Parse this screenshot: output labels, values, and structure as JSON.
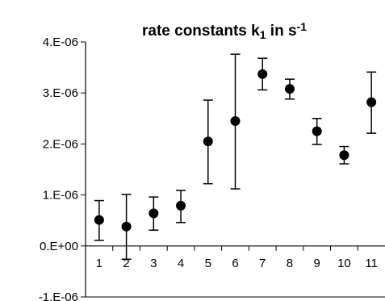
{
  "chart_data": {
    "type": "scatter",
    "title": {
      "prefix": "rate constants k",
      "subscript": "1",
      "middle": " in s",
      "superscript": "-1"
    },
    "xlabel": "",
    "ylabel": "",
    "x_tick_labels": [
      "1",
      "2",
      "3",
      "4",
      "5",
      "6",
      "7",
      "8",
      "9",
      "10",
      "11"
    ],
    "y_tick_labels": [
      "4.E-06",
      "3.E-06",
      "2.E-06",
      "1.E-06",
      "0.E+00",
      "-1.E-06"
    ],
    "y_ticks": [
      4e-06,
      3e-06,
      2e-06,
      1e-06,
      0,
      -1e-06
    ],
    "ylim": [
      -1e-06,
      4e-06
    ],
    "xlim": [
      0.5,
      11.5
    ],
    "grid": false,
    "legend": "none",
    "marker_color": "#000000",
    "series": [
      {
        "x": [
          1,
          2,
          3,
          4,
          5,
          6,
          7,
          8,
          9,
          10,
          11
        ],
        "y": [
          5.1e-07,
          3.8e-07,
          6.4e-07,
          7.9e-07,
          2.05e-06,
          2.45e-06,
          3.37e-06,
          3.08e-06,
          2.25e-06,
          1.78e-06,
          2.82e-06
        ],
        "err_low": [
          1.1e-07,
          -2.6e-07,
          3.1e-07,
          4.6e-07,
          1.22e-06,
          1.12e-06,
          3.06e-06,
          2.88e-06,
          1.99e-06,
          1.61e-06,
          2.21e-06
        ],
        "err_high": [
          8.9e-07,
          1.01e-06,
          9.6e-07,
          1.09e-06,
          2.86e-06,
          3.76e-06,
          3.68e-06,
          3.27e-06,
          2.5e-06,
          1.95e-06,
          3.41e-06
        ]
      }
    ]
  }
}
